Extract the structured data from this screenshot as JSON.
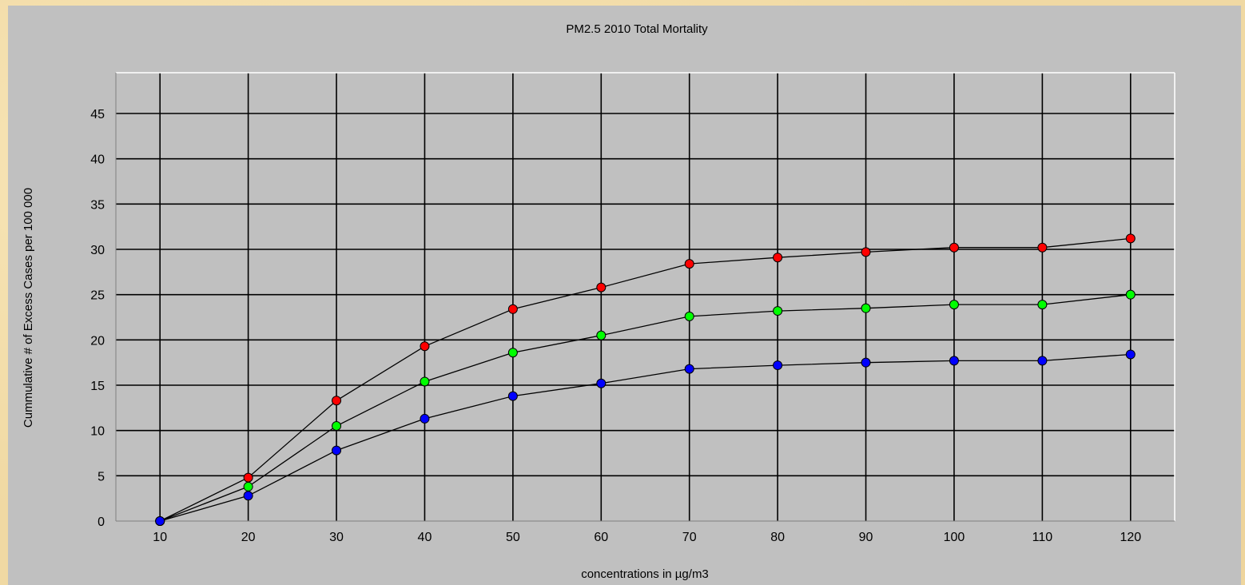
{
  "chart_data": {
    "type": "line",
    "title": "PM2.5  2010   Total Mortality",
    "xlabel": "concentrations in µg/m3",
    "ylabel": "Cummulative # of Excess Cases per 100 000",
    "x": [
      10,
      20,
      30,
      40,
      50,
      60,
      70,
      80,
      90,
      100,
      110,
      120
    ],
    "xlim": [
      5,
      125
    ],
    "ylim": [
      0,
      49.5
    ],
    "yticks": [
      0,
      5,
      10,
      15,
      20,
      25,
      30,
      35,
      40,
      45
    ],
    "grid": true,
    "series": [
      {
        "color": "#ff0000",
        "values": [
          0,
          4.8,
          13.3,
          19.3,
          23.4,
          25.8,
          28.4,
          29.1,
          29.7,
          30.2,
          30.2,
          31.2
        ]
      },
      {
        "color": "#00ff00",
        "values": [
          0,
          3.8,
          10.5,
          15.4,
          18.6,
          20.5,
          22.6,
          23.2,
          23.5,
          23.9,
          23.9,
          25.0
        ]
      },
      {
        "color": "#0000ff",
        "values": [
          0,
          2.8,
          7.8,
          11.3,
          13.8,
          15.2,
          16.8,
          17.2,
          17.5,
          17.7,
          17.7,
          18.4
        ]
      }
    ]
  },
  "colors": {
    "panel": "#c0c0c0",
    "plot_area": "#c0c0c0",
    "grid": "#000000",
    "plot_border": "#ffffff"
  }
}
